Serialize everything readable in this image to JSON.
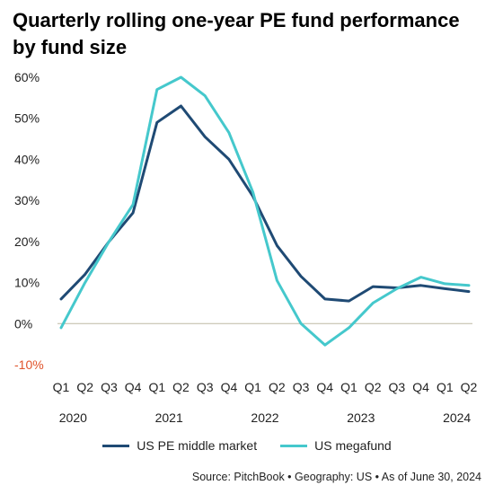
{
  "title": "Quarterly rolling one-year PE fund performance by fund size",
  "source": "Source: PitchBook  •  Geography: US  •  As of June 30, 2024",
  "colors": {
    "middle_market": "#1f4a74",
    "megafund": "#45c8cc",
    "negative_tick": "#e0542b"
  },
  "chart_data": {
    "type": "line",
    "x": [
      "Q1",
      "Q2",
      "Q3",
      "Q4",
      "Q1",
      "Q2",
      "Q3",
      "Q4",
      "Q1",
      "Q2",
      "Q3",
      "Q4",
      "Q1",
      "Q2",
      "Q3",
      "Q4",
      "Q1",
      "Q2"
    ],
    "years": [
      {
        "label": "2020",
        "first_index": 0
      },
      {
        "label": "2021",
        "first_index": 4
      },
      {
        "label": "2022",
        "first_index": 8
      },
      {
        "label": "2023",
        "first_index": 12
      },
      {
        "label": "2024",
        "first_index": 16
      }
    ],
    "ylim": [
      -10,
      60
    ],
    "yticks": [
      "60%",
      "50%",
      "40%",
      "30%",
      "20%",
      "10%",
      "0%",
      "-10%"
    ],
    "ytick_values": [
      60,
      50,
      40,
      30,
      20,
      10,
      0,
      -10
    ],
    "grid": false,
    "zero_line": true,
    "series": [
      {
        "name": "US PE middle market",
        "color": "#1f4a74",
        "values": [
          6,
          12,
          20,
          27,
          49,
          53,
          45.5,
          40,
          31,
          19,
          11.5,
          6,
          5.5,
          9,
          8.7,
          9.3,
          8.5,
          7.8
        ]
      },
      {
        "name": "US megafund",
        "color": "#45c8cc",
        "values": [
          -1,
          10,
          20,
          29,
          57,
          60,
          55.5,
          46.5,
          32,
          10.5,
          0,
          -5.2,
          -1,
          5,
          8.5,
          11.3,
          9.7,
          9.3
        ]
      }
    ],
    "legend_position": "bottom"
  }
}
